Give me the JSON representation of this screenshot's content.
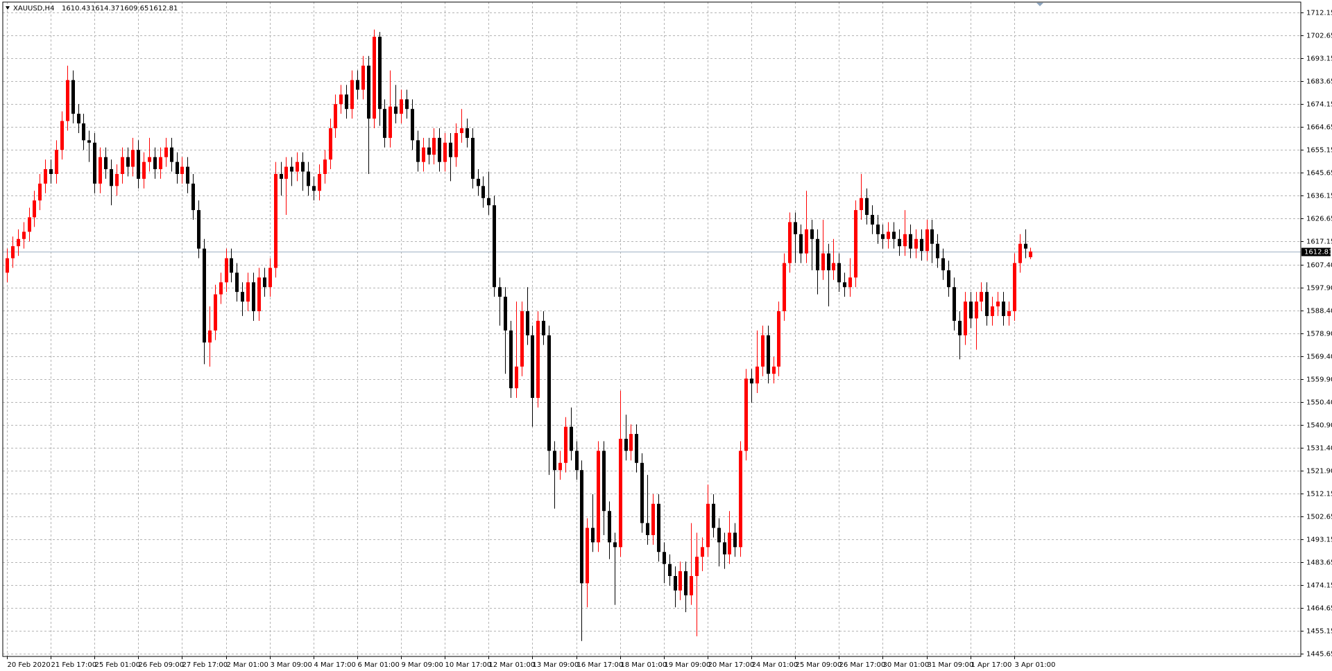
{
  "chart_data": {
    "type": "candlestick",
    "title": "XAUUSD,H4",
    "up_color": "#ff0000",
    "down_color": "#000000",
    "grid": true,
    "ylim": [
      1444.6,
      1716.4
    ],
    "yticks": [
      1712.15,
      1702.65,
      1693.15,
      1683.65,
      1674.15,
      1664.65,
      1655.15,
      1645.65,
      1636.15,
      1626.65,
      1617.15,
      {
        "value": 1607.4,
        "label": "1607.40"
      },
      {
        "value": 1597.9,
        "label": "1597.90"
      },
      {
        "value": 1588.4,
        "label": "1588.40"
      },
      {
        "value": 1578.9,
        "label": "1578.90"
      },
      {
        "value": 1569.4,
        "label": "1569.40"
      },
      {
        "value": 1559.9,
        "label": "1559.90"
      },
      {
        "value": 1550.4,
        "label": "1550.40"
      },
      {
        "value": 1540.9,
        "label": "1540.90"
      },
      {
        "value": 1531.4,
        "label": "1531.40"
      },
      {
        "value": 1521.9,
        "label": "1521.90"
      },
      1512.15,
      1502.65,
      1493.15,
      1483.65,
      1474.15,
      1464.65,
      1455.15,
      1445.65
    ],
    "categories": [
      "20 Feb 2020",
      null,
      null,
      null,
      null,
      null,
      null,
      null,
      "21 Feb 17:00",
      null,
      null,
      null,
      null,
      null,
      null,
      null,
      "25 Feb 01:00",
      null,
      null,
      null,
      null,
      null,
      null,
      null,
      "26 Feb 09:00",
      null,
      null,
      null,
      null,
      null,
      null,
      null,
      "27 Feb 17:00",
      null,
      null,
      null,
      null,
      null,
      null,
      null,
      "2 Mar 01:00",
      null,
      null,
      null,
      null,
      null,
      null,
      null,
      "3 Mar 09:00",
      null,
      null,
      null,
      null,
      null,
      null,
      null,
      "4 Mar 17:00",
      null,
      null,
      null,
      null,
      null,
      null,
      null,
      "6 Mar 01:00",
      null,
      null,
      null,
      null,
      null,
      null,
      null,
      "9 Mar 09:00",
      null,
      null,
      null,
      null,
      null,
      null,
      null,
      "10 Mar 17:00",
      null,
      null,
      null,
      null,
      null,
      null,
      null,
      "12 Mar 01:00",
      null,
      null,
      null,
      null,
      null,
      null,
      null,
      "13 Mar 09:00",
      null,
      null,
      null,
      null,
      null,
      null,
      null,
      "16 Mar 17:00",
      null,
      null,
      null,
      null,
      null,
      null,
      null,
      "18 Mar 01:00",
      null,
      null,
      null,
      null,
      null,
      null,
      null,
      "19 Mar 09:00",
      null,
      null,
      null,
      null,
      null,
      null,
      null,
      "20 Mar 17:00",
      null,
      null,
      null,
      null,
      null,
      null,
      null,
      "24 Mar 01:00",
      null,
      null,
      null,
      null,
      null,
      null,
      null,
      "25 Mar 09:00",
      null,
      null,
      null,
      null,
      null,
      null,
      null,
      "26 Mar 17:00",
      null,
      null,
      null,
      null,
      null,
      null,
      null,
      "30 Mar 01:00",
      null,
      null,
      null,
      null,
      null,
      null,
      null,
      "31 Mar 09:00",
      null,
      null,
      null,
      null,
      null,
      null,
      null,
      "1 Apr 17:00",
      null,
      null,
      null,
      null,
      null,
      null,
      null,
      "3 Apr 01:00",
      null,
      null,
      null
    ],
    "open": [
      1604,
      1610,
      1615,
      1618,
      1621,
      1627,
      1634,
      1641,
      1647,
      1645,
      1655,
      1667,
      1684,
      1670,
      1666,
      1659,
      1658,
      1641,
      1652,
      1647,
      1640,
      1645,
      1652,
      1648,
      1655,
      1643,
      1650,
      1652,
      1647,
      1652,
      1656,
      1650,
      1645,
      1648,
      1641,
      1630,
      1614,
      1575,
      1580,
      1595,
      1600,
      1610,
      1604,
      1596,
      1592,
      1600,
      1588,
      1602,
      1598,
      1606,
      1645,
      1643,
      1648,
      1646,
      1650,
      1646,
      1640,
      1638,
      1645,
      1651,
      1664,
      1674,
      1678,
      1672,
      1684,
      1680,
      1690,
      1668,
      1702,
      1672,
      1660,
      1673,
      1670,
      1676,
      1672,
      1659,
      1650,
      1656,
      1653,
      1660,
      1650,
      1658,
      1652,
      1662,
      1664,
      1660,
      1643,
      1640,
      1635,
      1632,
      1598,
      1594,
      1580,
      1556,
      1565,
      1588,
      1578,
      1552,
      1584,
      1578,
      1530,
      1522,
      1525,
      1540,
      1530,
      1522,
      1475,
      1498,
      1492,
      1530,
      1505,
      1492,
      1490,
      1535,
      1530,
      1537,
      1525,
      1500,
      1495,
      1508,
      1488,
      1483,
      1478,
      1472,
      1480,
      1470,
      1478,
      1486,
      1490,
      1508,
      1498,
      1492,
      1487,
      1496,
      1490,
      1530,
      1560,
      1558,
      1565,
      1578,
      1562,
      1565,
      1588,
      1608,
      1625,
      1620,
      1612,
      1622,
      1618,
      1605,
      1612,
      1605,
      1608,
      1600,
      1598,
      1602,
      1630,
      1635,
      1628,
      1624,
      1620,
      1618,
      1621,
      1618,
      1615,
      1620,
      1614,
      1618,
      1613,
      1622,
      1616,
      1610,
      1605,
      1598,
      1584,
      1578,
      1592,
      1585,
      1592,
      1596,
      1586,
      1590,
      1592,
      1586,
      1588,
      1608,
      1616,
      1610.43
    ],
    "high": [
      1614,
      1619,
      1622,
      1625,
      1631,
      1638,
      1645,
      1651,
      1651,
      1659,
      1671,
      1690,
      1688,
      1674,
      1670,
      1663,
      1662,
      1656,
      1656,
      1651,
      1649,
      1656,
      1656,
      1660,
      1659,
      1654,
      1660,
      1656,
      1656,
      1660,
      1660,
      1654,
      1652,
      1652,
      1645,
      1634,
      1618,
      1590,
      1599,
      1604,
      1614,
      1614,
      1608,
      1600,
      1604,
      1604,
      1606,
      1606,
      1610,
      1650,
      1650,
      1652,
      1652,
      1654,
      1654,
      1650,
      1644,
      1649,
      1655,
      1668,
      1678,
      1682,
      1682,
      1688,
      1688,
      1694,
      1694,
      1705,
      1704,
      1676,
      1688,
      1682,
      1680,
      1680,
      1676,
      1663,
      1660,
      1660,
      1664,
      1664,
      1662,
      1662,
      1666,
      1672,
      1668,
      1664,
      1647,
      1644,
      1646,
      1636,
      1602,
      1598,
      1584,
      1592,
      1592,
      1598,
      1582,
      1588,
      1588,
      1582,
      1534,
      1530,
      1544,
      1548,
      1534,
      1526,
      1502,
      1512,
      1534,
      1534,
      1509,
      1496,
      1555,
      1545,
      1541,
      1541,
      1529,
      1520,
      1512,
      1512,
      1492,
      1487,
      1482,
      1484,
      1484,
      1500,
      1496,
      1494,
      1516,
      1512,
      1502,
      1496,
      1505,
      1500,
      1534,
      1564,
      1564,
      1580,
      1582,
      1582,
      1569,
      1592,
      1612,
      1629,
      1629,
      1624,
      1638,
      1626,
      1622,
      1626,
      1616,
      1618,
      1612,
      1604,
      1610,
      1634,
      1645,
      1639,
      1632,
      1628,
      1624,
      1625,
      1625,
      1622,
      1630,
      1624,
      1622,
      1622,
      1626,
      1626,
      1620,
      1614,
      1609,
      1602,
      1588,
      1596,
      1596,
      1596,
      1600,
      1600,
      1594,
      1596,
      1596,
      1592,
      1612,
      1620,
      1622,
      1614.37
    ],
    "low": [
      1600,
      1606,
      1611,
      1614,
      1617,
      1623,
      1630,
      1637,
      1641,
      1641,
      1651,
      1663,
      1666,
      1662,
      1655,
      1650,
      1637,
      1637,
      1643,
      1632,
      1636,
      1641,
      1644,
      1644,
      1639,
      1639,
      1646,
      1643,
      1643,
      1648,
      1646,
      1641,
      1641,
      1637,
      1626,
      1610,
      1566,
      1565,
      1576,
      1591,
      1596,
      1600,
      1592,
      1586,
      1588,
      1584,
      1584,
      1594,
      1594,
      1602,
      1636,
      1628,
      1640,
      1642,
      1638,
      1636,
      1634,
      1634,
      1641,
      1647,
      1660,
      1670,
      1668,
      1668,
      1676,
      1676,
      1645,
      1664,
      1665,
      1656,
      1656,
      1666,
      1666,
      1668,
      1655,
      1646,
      1646,
      1649,
      1649,
      1646,
      1646,
      1642,
      1648,
      1658,
      1656,
      1639,
      1636,
      1631,
      1628,
      1594,
      1582,
      1562,
      1552,
      1552,
      1561,
      1574,
      1540,
      1548,
      1574,
      1520,
      1506,
      1518,
      1521,
      1526,
      1518,
      1451,
      1465,
      1488,
      1488,
      1495,
      1485,
      1466,
      1486,
      1526,
      1526,
      1521,
      1496,
      1491,
      1491,
      1484,
      1475,
      1474,
      1465,
      1468,
      1463,
      1466,
      1453,
      1480,
      1486,
      1494,
      1482,
      1481,
      1483,
      1486,
      1486,
      1526,
      1550,
      1554,
      1561,
      1558,
      1558,
      1561,
      1584,
      1604,
      1608,
      1608,
      1608,
      1605,
      1595,
      1601,
      1590,
      1601,
      1596,
      1594,
      1594,
      1598,
      1626,
      1624,
      1620,
      1616,
      1614,
      1614,
      1614,
      1611,
      1611,
      1610,
      1610,
      1609,
      1609,
      1608,
      1606,
      1601,
      1594,
      1580,
      1568,
      1574,
      1581,
      1572,
      1588,
      1582,
      1582,
      1586,
      1582,
      1582,
      1584,
      1604,
      1610,
      1609.65
    ],
    "close": [
      1610,
      1615,
      1618,
      1621,
      1627,
      1634,
      1641,
      1647,
      1645,
      1655,
      1667,
      1684,
      1670,
      1666,
      1659,
      1658,
      1641,
      1652,
      1647,
      1640,
      1645,
      1652,
      1648,
      1655,
      1643,
      1650,
      1652,
      1647,
      1652,
      1656,
      1650,
      1645,
      1648,
      1641,
      1630,
      1614,
      1575,
      1580,
      1595,
      1600,
      1610,
      1604,
      1596,
      1592,
      1600,
      1588,
      1602,
      1598,
      1606,
      1645,
      1643,
      1648,
      1646,
      1650,
      1646,
      1640,
      1638,
      1645,
      1651,
      1664,
      1674,
      1678,
      1672,
      1684,
      1680,
      1690,
      1668,
      1702,
      1672,
      1660,
      1673,
      1670,
      1676,
      1672,
      1659,
      1650,
      1656,
      1653,
      1660,
      1650,
      1658,
      1652,
      1662,
      1664,
      1660,
      1643,
      1640,
      1635,
      1632,
      1598,
      1594,
      1580,
      1556,
      1565,
      1588,
      1578,
      1552,
      1584,
      1578,
      1530,
      1522,
      1525,
      1540,
      1530,
      1522,
      1475,
      1498,
      1492,
      1530,
      1505,
      1492,
      1490,
      1535,
      1530,
      1537,
      1525,
      1500,
      1495,
      1508,
      1488,
      1483,
      1478,
      1472,
      1480,
      1470,
      1478,
      1486,
      1490,
      1508,
      1498,
      1492,
      1487,
      1496,
      1490,
      1530,
      1560,
      1558,
      1565,
      1578,
      1562,
      1565,
      1588,
      1608,
      1625,
      1620,
      1612,
      1622,
      1618,
      1605,
      1612,
      1605,
      1608,
      1600,
      1598,
      1602,
      1630,
      1635,
      1628,
      1624,
      1620,
      1618,
      1621,
      1618,
      1615,
      1620,
      1614,
      1618,
      1613,
      1622,
      1616,
      1610,
      1605,
      1598,
      1584,
      1578,
      1592,
      1585,
      1592,
      1596,
      1586,
      1590,
      1592,
      1586,
      1588,
      1608,
      1616,
      1614,
      1612.81
    ]
  }
}
